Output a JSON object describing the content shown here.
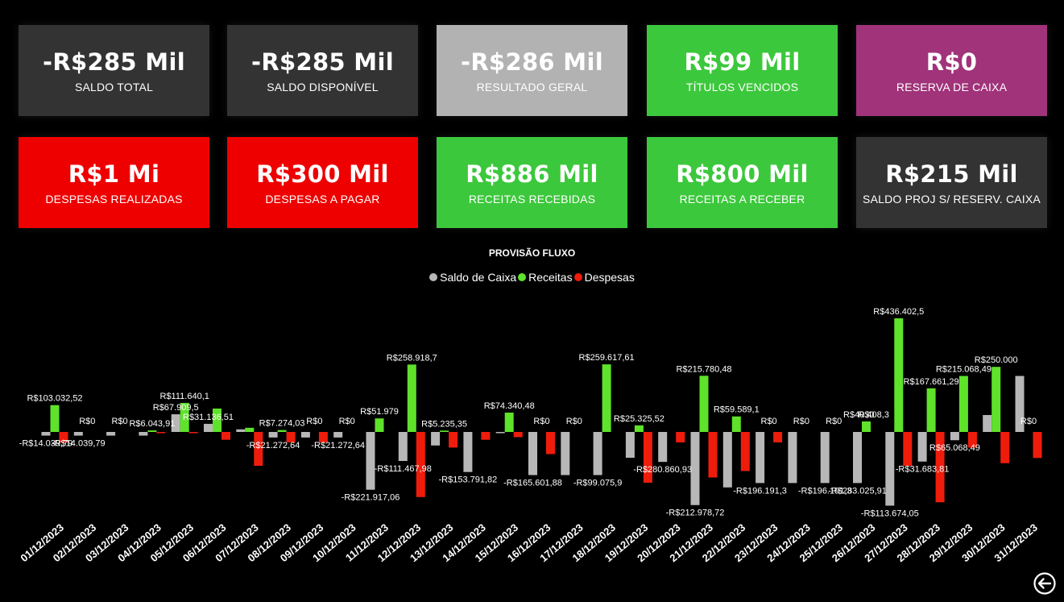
{
  "colors": {
    "dark_gray": "#333333",
    "light_gray": "#b2b2b2",
    "green": "#3cc83c",
    "purple": "#a0337a",
    "red": "#ef0000",
    "bar_gray": "#b7b7b7",
    "bar_green": "#5fe22a",
    "bar_red": "#ef1c0c"
  },
  "cards": [
    {
      "value": "-R$285 Mil",
      "label": "SALDO TOTAL",
      "color": "#333333"
    },
    {
      "value": "-R$285 Mil",
      "label": "SALDO  DISPONÍVEL",
      "color": "#333333"
    },
    {
      "value": "-R$286 Mil",
      "label": "RESULTADO GERAL",
      "color": "#b2b2b2"
    },
    {
      "value": "R$99 Mil",
      "label": "TÍTULOS VENCIDOS",
      "color": "#3cc83c"
    },
    {
      "value": "R$0",
      "label": "RESERVA DE CAIXA",
      "color": "#a0337a"
    },
    {
      "value": "R$1 Mi",
      "label": "DESPESAS REALIZADAS",
      "color": "#ef0000"
    },
    {
      "value": "R$300 Mil",
      "label": "DESPESAS A PAGAR",
      "color": "#ef0000"
    },
    {
      "value": "R$886 Mil",
      "label": "RECEITAS RECEBIDAS",
      "color": "#3cc83c"
    },
    {
      "value": "R$800 Mil",
      "label": "RECEITAS A RECEBER",
      "color": "#3cc83c"
    },
    {
      "value": "R$215 Mil",
      "label": "SALDO PROJ S/ RESERV. CAIXA",
      "color": "#333333"
    }
  ],
  "chart_data": {
    "type": "bar",
    "title": "PROVISÃO FLUXO",
    "legend_position": "top-center",
    "grid": false,
    "categories": [
      "01/12/2023",
      "02/12/2023",
      "03/12/2023",
      "04/12/2023",
      "05/12/2023",
      "06/12/2023",
      "07/12/2023",
      "08/12/2023",
      "09/12/2023",
      "10/12/2023",
      "11/12/2023",
      "12/12/2023",
      "13/12/2023",
      "14/12/2023",
      "15/12/2023",
      "16/12/2023",
      "17/12/2023",
      "18/12/2023",
      "19/12/2023",
      "20/12/2023",
      "21/12/2023",
      "22/12/2023",
      "23/12/2023",
      "24/12/2023",
      "25/12/2023",
      "26/12/2023",
      "27/12/2023",
      "28/12/2023",
      "29/12/2023",
      "30/12/2023",
      "31/12/2023"
    ],
    "series": [
      {
        "name": "Saldo de Caixa",
        "color": "#b7b7b7",
        "values": [
          -14039.79,
          -14039.79,
          -14039.79,
          -14039.79,
          67909.5,
          31136.51,
          10000,
          -21272.64,
          -21272.64,
          -21272.64,
          -221917.06,
          -111467.98,
          -52000,
          -153791.82,
          -1500,
          -165601.88,
          -165601.88,
          -165601.88,
          -99075.9,
          -115000,
          -280860.93,
          -212978.72,
          -196191.3,
          -196191.3,
          -196191.3,
          -196191.3,
          -283025.91,
          -113674.05,
          -31683.81,
          65068.49,
          215068.49
        ]
      },
      {
        "name": "Receitas",
        "color": "#5fe22a",
        "values": [
          103032.52,
          0,
          0,
          6043.91,
          111640.1,
          90000,
          16000,
          7274.03,
          0,
          0,
          51979,
          258918.7,
          5235.35,
          0,
          74340.48,
          0,
          0,
          259617.61,
          25325.52,
          0,
          215780.48,
          59589.1,
          0,
          0,
          0,
          40408.3,
          436402.5,
          167661.29,
          215068.49,
          250000,
          0
        ]
      },
      {
        "name": "Despesas",
        "color": "#ef1c0c",
        "values": [
          -40000,
          0,
          0,
          -3000,
          -3000,
          -30000,
          -130000,
          -40000,
          -40000,
          0,
          0,
          -250000,
          -60000,
          -30000,
          -20000,
          -85000,
          0,
          0,
          -195000,
          -40000,
          -175000,
          -150000,
          -40000,
          0,
          0,
          0,
          -130000,
          -270000,
          -60000,
          -120000,
          -100000
        ]
      }
    ],
    "data_labels": [
      {
        "text": "R$103.032,52",
        "day": 1,
        "series": "Receitas"
      },
      {
        "text": "-R$14.039,79",
        "day": 1,
        "series": "Saldo de Caixa"
      },
      {
        "text": "R$0",
        "day": 2,
        "series": "Receitas"
      },
      {
        "text": "-R$14.039,79",
        "day": 2,
        "series": "Saldo de Caixa"
      },
      {
        "text": "R$0",
        "day": 3,
        "series": "Receitas"
      },
      {
        "text": "R$6.043,91",
        "day": 4,
        "series": "Receitas"
      },
      {
        "text": "R$67.909,5",
        "day": 5,
        "series": "Saldo de Caixa"
      },
      {
        "text": "R$111.640,1",
        "day": 5,
        "series": "Receitas"
      },
      {
        "text": "R$31.136,51",
        "day": 6,
        "series": "Saldo de Caixa"
      },
      {
        "text": "R$7.274,03",
        "day": 8,
        "series": "Receitas"
      },
      {
        "text": "-R$21.272,64",
        "day": 8,
        "series": "Saldo de Caixa"
      },
      {
        "text": "R$0",
        "day": 9,
        "series": "Receitas"
      },
      {
        "text": "R$0",
        "day": 10,
        "series": "Receitas"
      },
      {
        "text": "-R$21.272,64",
        "day": 10,
        "series": "Saldo de Caixa"
      },
      {
        "text": "R$51.979",
        "day": 11,
        "series": "Receitas"
      },
      {
        "text": "-R$221.917,06",
        "day": 11,
        "series": "Saldo de Caixa"
      },
      {
        "text": "R$258.918,7",
        "day": 12,
        "series": "Receitas"
      },
      {
        "text": "-R$111.467,98",
        "day": 12,
        "series": "Saldo de Caixa"
      },
      {
        "text": "R$5.235,35",
        "day": 13,
        "series": "Receitas"
      },
      {
        "text": "-R$153.791,82",
        "day": 14,
        "series": "Saldo de Caixa"
      },
      {
        "text": "R$74.340,48",
        "day": 15,
        "series": "Receitas"
      },
      {
        "text": "-R$165.601,88",
        "day": 16,
        "series": "Saldo de Caixa"
      },
      {
        "text": "R$0",
        "day": 16,
        "series": "Receitas"
      },
      {
        "text": "R$0",
        "day": 17,
        "series": "Receitas"
      },
      {
        "text": "R$259.617,61",
        "day": 18,
        "series": "Receitas"
      },
      {
        "text": "-R$99.075,9",
        "day": 18,
        "series": "Saldo de Caixa"
      },
      {
        "text": "R$25.325,52",
        "day": 19,
        "series": "Receitas"
      },
      {
        "text": "-R$280.860,93",
        "day": 20,
        "series": "Saldo de Caixa"
      },
      {
        "text": "R$215.780,48",
        "day": 21,
        "series": "Receitas"
      },
      {
        "text": "-R$212.978,72",
        "day": 21,
        "series": "Saldo de Caixa"
      },
      {
        "text": "R$59.589,1",
        "day": 22,
        "series": "Receitas"
      },
      {
        "text": "R$0",
        "day": 23,
        "series": "Receitas"
      },
      {
        "text": "-R$196.191,3",
        "day": 23,
        "series": "Saldo de Caixa"
      },
      {
        "text": "R$0",
        "day": 24,
        "series": "Receitas"
      },
      {
        "text": "R$0",
        "day": 25,
        "series": "Receitas"
      },
      {
        "text": "-R$196.191,3",
        "day": 25,
        "series": "Saldo de Caixa"
      },
      {
        "text": "R$0",
        "day": 26,
        "series": "Receitas"
      },
      {
        "text": "R$40.408,3",
        "day": 26,
        "series": "Receitas"
      },
      {
        "text": "-R$283.025,91",
        "day": 26,
        "series": "Saldo de Caixa"
      },
      {
        "text": "R$436.402,5",
        "day": 27,
        "series": "Receitas"
      },
      {
        "text": "-R$113.674,05",
        "day": 27,
        "series": "Saldo de Caixa"
      },
      {
        "text": "R$167.661,29",
        "day": 28,
        "series": "Receitas"
      },
      {
        "text": "-R$31.683,81",
        "day": 28,
        "series": "Saldo de Caixa"
      },
      {
        "text": "R$65.068,49",
        "day": 29,
        "series": "Saldo de Caixa"
      },
      {
        "text": "R$215.068,49",
        "day": 29,
        "series": "Receitas"
      },
      {
        "text": "R$250.000",
        "day": 30,
        "series": "Receitas"
      },
      {
        "text": "R$0",
        "day": 31,
        "series": "Receitas"
      }
    ]
  },
  "icons": {
    "back": "arrow-left-circle-icon"
  }
}
